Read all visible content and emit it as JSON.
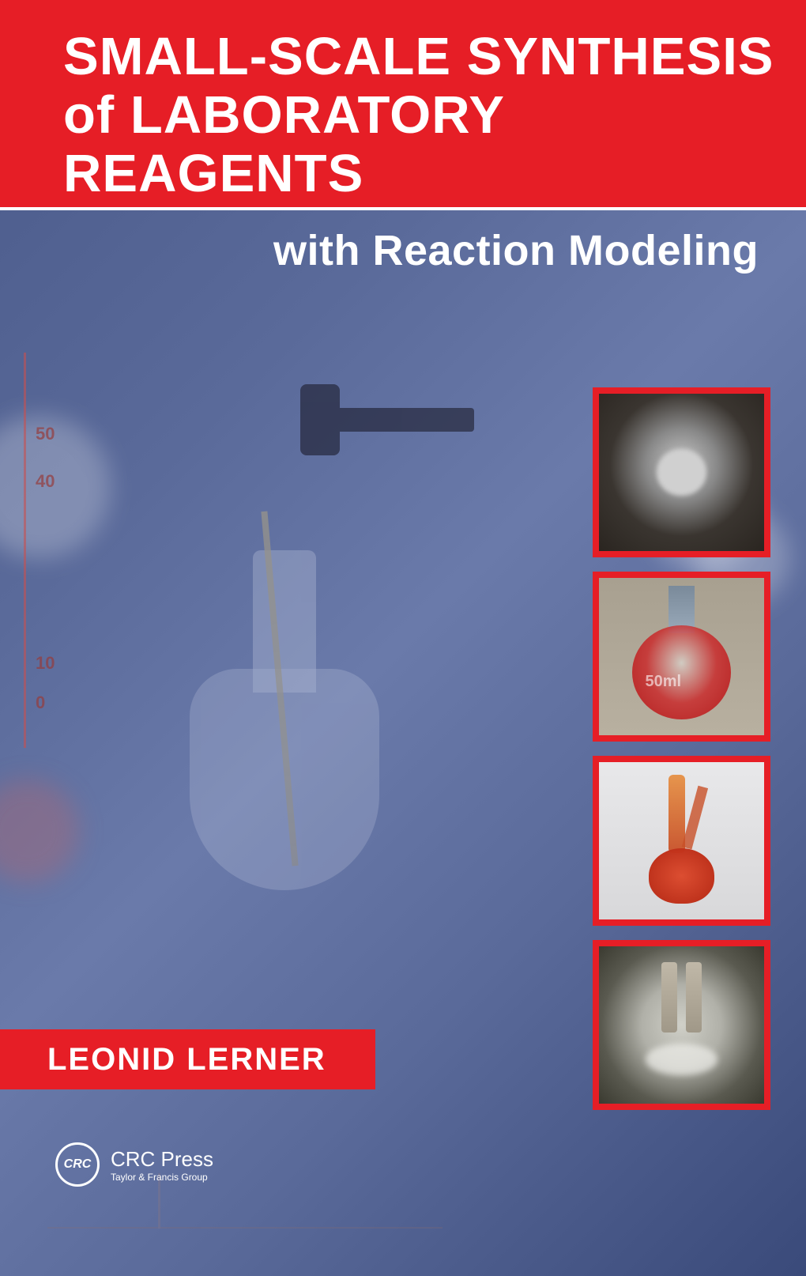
{
  "title": {
    "line1": "SMALL-SCALE SYNTHESIS",
    "line2": "of LABORATORY REAGENTS"
  },
  "subtitle": "with Reaction Modeling",
  "author": "LEONID LERNER",
  "publisher": {
    "logo_text": "CRC",
    "name": "CRC Press",
    "subtitle": "Taylor & Francis Group"
  },
  "colors": {
    "banner_red": "#e61e26",
    "white": "#ffffff",
    "bg_blue_start": "#4a5a8a",
    "bg_blue_end": "#3a4a7a"
  },
  "axis_labels": {
    "l1": "50",
    "l2": "40",
    "l3": "10",
    "l4": "0"
  },
  "thumb2_label": "50ml",
  "thumbnails": [
    {
      "description": "crucible-top-view"
    },
    {
      "description": "round-flask-red-liquid"
    },
    {
      "description": "distillation-setup-red"
    },
    {
      "description": "reaction-vessel-tubes"
    }
  ]
}
